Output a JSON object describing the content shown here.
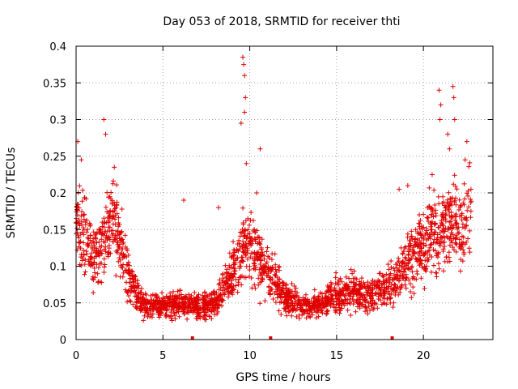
{
  "chart_data": {
    "type": "scatter",
    "title": "Day 053 of 2018, SRMTID for receiver thti",
    "xlabel": "GPS time / hours",
    "ylabel": "SRMTID / TECUs",
    "xlim": [
      0,
      24
    ],
    "ylim": [
      0,
      0.4
    ],
    "x_ticks": [
      0,
      5,
      10,
      15,
      20
    ],
    "x_tick_labels": [
      "0",
      "5",
      "10",
      "15",
      "20"
    ],
    "y_ticks": [
      0,
      0.05,
      0.1,
      0.15,
      0.2,
      0.25,
      0.3,
      0.35,
      0.4
    ],
    "y_tick_labels": [
      "0",
      "0.05",
      "0.1",
      "0.15",
      "0.2",
      "0.25",
      "0.3",
      "0.35",
      "0.4"
    ],
    "grid": true,
    "marker": "plus",
    "color": "#e00000",
    "x_range_of_data": [
      0,
      22.8
    ],
    "trend": [
      {
        "x": 0.0,
        "y": 0.17
      },
      {
        "x": 0.5,
        "y": 0.14
      },
      {
        "x": 1.0,
        "y": 0.11
      },
      {
        "x": 1.5,
        "y": 0.13
      },
      {
        "x": 2.0,
        "y": 0.17
      },
      {
        "x": 2.5,
        "y": 0.13
      },
      {
        "x": 3.0,
        "y": 0.09
      },
      {
        "x": 3.5,
        "y": 0.06
      },
      {
        "x": 4.0,
        "y": 0.045
      },
      {
        "x": 5.0,
        "y": 0.045
      },
      {
        "x": 6.0,
        "y": 0.05
      },
      {
        "x": 7.0,
        "y": 0.045
      },
      {
        "x": 8.0,
        "y": 0.05
      },
      {
        "x": 8.5,
        "y": 0.07
      },
      {
        "x": 9.0,
        "y": 0.09
      },
      {
        "x": 9.5,
        "y": 0.12
      },
      {
        "x": 10.0,
        "y": 0.13
      },
      {
        "x": 10.5,
        "y": 0.11
      },
      {
        "x": 11.0,
        "y": 0.09
      },
      {
        "x": 12.0,
        "y": 0.06
      },
      {
        "x": 13.0,
        "y": 0.045
      },
      {
        "x": 14.0,
        "y": 0.05
      },
      {
        "x": 15.0,
        "y": 0.06
      },
      {
        "x": 16.0,
        "y": 0.065
      },
      {
        "x": 17.0,
        "y": 0.06
      },
      {
        "x": 18.0,
        "y": 0.07
      },
      {
        "x": 19.0,
        "y": 0.1
      },
      {
        "x": 20.0,
        "y": 0.13
      },
      {
        "x": 20.5,
        "y": 0.15
      },
      {
        "x": 21.0,
        "y": 0.14
      },
      {
        "x": 21.5,
        "y": 0.16
      },
      {
        "x": 22.0,
        "y": 0.15
      },
      {
        "x": 22.8,
        "y": 0.18
      }
    ],
    "spikes": [
      {
        "x": 0.1,
        "y": 0.27
      },
      {
        "x": 0.3,
        "y": 0.245
      },
      {
        "x": 1.6,
        "y": 0.3
      },
      {
        "x": 1.7,
        "y": 0.28
      },
      {
        "x": 2.2,
        "y": 0.235
      },
      {
        "x": 6.2,
        "y": 0.19
      },
      {
        "x": 8.2,
        "y": 0.18
      },
      {
        "x": 9.6,
        "y": 0.385
      },
      {
        "x": 9.65,
        "y": 0.375
      },
      {
        "x": 9.7,
        "y": 0.36
      },
      {
        "x": 9.75,
        "y": 0.33
      },
      {
        "x": 9.7,
        "y": 0.31
      },
      {
        "x": 9.5,
        "y": 0.295
      },
      {
        "x": 9.8,
        "y": 0.24
      },
      {
        "x": 10.6,
        "y": 0.26
      },
      {
        "x": 10.4,
        "y": 0.2
      },
      {
        "x": 18.6,
        "y": 0.205
      },
      {
        "x": 19.1,
        "y": 0.21
      },
      {
        "x": 20.9,
        "y": 0.34
      },
      {
        "x": 21.0,
        "y": 0.32
      },
      {
        "x": 20.95,
        "y": 0.3
      },
      {
        "x": 21.7,
        "y": 0.345
      },
      {
        "x": 21.75,
        "y": 0.33
      },
      {
        "x": 21.8,
        "y": 0.3
      },
      {
        "x": 22.5,
        "y": 0.27
      },
      {
        "x": 21.5,
        "y": 0.26
      },
      {
        "x": 22.4,
        "y": 0.245
      },
      {
        "x": 21.4,
        "y": 0.28
      }
    ],
    "gap_markers_x": [
      6.7,
      11.2,
      18.2
    ]
  }
}
